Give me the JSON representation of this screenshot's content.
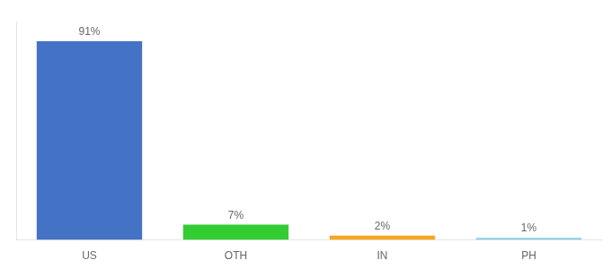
{
  "chart_data": {
    "type": "bar",
    "categories": [
      "US",
      "OTH",
      "IN",
      "PH"
    ],
    "values": [
      91,
      7,
      2,
      1
    ],
    "value_labels": [
      "91%",
      "7%",
      "2%",
      "1%"
    ],
    "colors": [
      "#4472c4",
      "#33cc33",
      "#f5a623",
      "#87ceeb"
    ],
    "ylim": [
      0,
      100
    ],
    "grid": false,
    "data_labels": true,
    "tick_labels": "x"
  }
}
